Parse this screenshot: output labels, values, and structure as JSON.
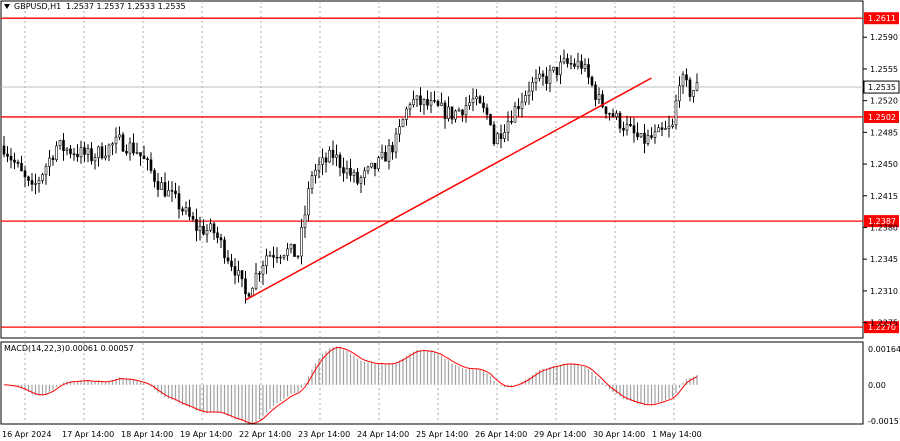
{
  "header": {
    "symbol_text": "GBPUSD,H1",
    "ohlc_text": "1.2537 1.2537 1.2533 1.2535"
  },
  "macd": {
    "title_text": "MACD(14,22,3)",
    "values_text": "0.00061 0.00057",
    "y_ticks": [
      "0.00164",
      "0.00",
      "-0.00157"
    ]
  },
  "colors": {
    "level": "#ff0000",
    "trendline": "#ff0000",
    "candle": "#000000",
    "grid": "#aaaaaa",
    "macd_hist": "#a0a0a0",
    "macd_signal": "#ff0000",
    "badge_text": "#ffffff"
  },
  "chart_data": {
    "type": "candlestick",
    "symbol": "GBPUSD",
    "timeframe": "H1",
    "ylim": [
      1.2258,
      1.263
    ],
    "y_ticks": [
      "1.2590",
      "1.2555",
      "1.2520",
      "1.2485",
      "1.2450",
      "1.2415",
      "1.2380",
      "1.2345",
      "1.2310",
      "1.2275"
    ],
    "x_labels": [
      "16 Apr 2024",
      "17 Apr 14:00",
      "18 Apr 14:00",
      "19 Apr 14:00",
      "22 Apr 14:00",
      "23 Apr 14:00",
      "24 Apr 14:00",
      "25 Apr 14:00",
      "26 Apr 14:00",
      "29 Apr 14:00",
      "30 Apr 14:00",
      "1 May 14:00"
    ],
    "levels": [
      {
        "value": 1.2611,
        "label": "1.2611"
      },
      {
        "value": 1.2502,
        "label": "1.2502"
      },
      {
        "value": 1.2387,
        "label": "1.2387"
      },
      {
        "value": 1.227,
        "label": "1.2270"
      }
    ],
    "current_price": {
      "value": 1.2535,
      "label": "1.2535"
    },
    "trendline": {
      "from": {
        "bar": 69,
        "price": 1.23
      },
      "to": {
        "bar": 185,
        "price": 1.2545
      }
    },
    "price_path": [
      [
        0,
        1.247
      ],
      [
        8,
        1.242
      ],
      [
        15,
        1.247
      ],
      [
        25,
        1.2458
      ],
      [
        33,
        1.2475
      ],
      [
        38,
        1.2465
      ],
      [
        44,
        1.243
      ],
      [
        50,
        1.2405
      ],
      [
        55,
        1.238
      ],
      [
        60,
        1.2375
      ],
      [
        66,
        1.2335
      ],
      [
        69,
        1.2305
      ],
      [
        75,
        1.235
      ],
      [
        80,
        1.2355
      ],
      [
        84,
        1.235
      ],
      [
        88,
        1.244
      ],
      [
        94,
        1.246
      ],
      [
        101,
        1.243
      ],
      [
        107,
        1.245
      ],
      [
        112,
        1.2475
      ],
      [
        116,
        1.252
      ],
      [
        121,
        1.2515
      ],
      [
        128,
        1.2505
      ],
      [
        134,
        1.252
      ],
      [
        139,
        1.25
      ],
      [
        140,
        1.2475
      ],
      [
        145,
        1.2505
      ],
      [
        150,
        1.2535
      ],
      [
        155,
        1.2545
      ],
      [
        160,
        1.256
      ],
      [
        165,
        1.256
      ],
      [
        170,
        1.252
      ],
      [
        175,
        1.25
      ],
      [
        182,
        1.2475
      ],
      [
        186,
        1.248
      ],
      [
        191,
        1.249
      ],
      [
        193,
        1.2545
      ],
      [
        196,
        1.253
      ],
      [
        198,
        1.2535
      ]
    ],
    "macd_range": [
      -0.00157,
      0.00164
    ]
  }
}
